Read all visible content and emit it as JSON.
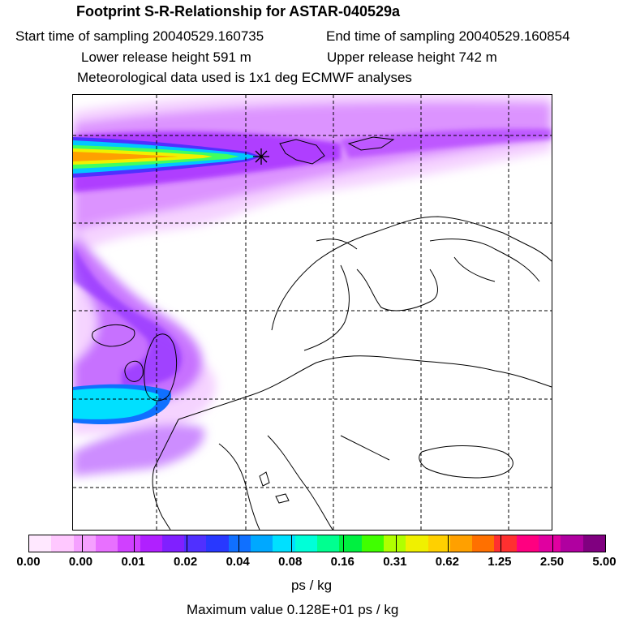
{
  "header": {
    "title": "Footprint S-R-Relationship for ASTAR-040529a",
    "start_time": "Start time of sampling 20040529.160735",
    "end_time": "End time of sampling 20040529.160854",
    "lower_height": "Lower release height  591 m",
    "upper_height": "Upper release height  742 m",
    "met_data": "Meteorological data used is 1x1 deg ECMWF analyses"
  },
  "colorbar": {
    "ticks": [
      "0.00",
      "0.00",
      "0.01",
      "0.02",
      "0.04",
      "0.08",
      "0.16",
      "0.31",
      "0.62",
      "1.25",
      "2.50",
      "5.00"
    ],
    "unit": "ps / kg",
    "max_value_text": "Maximum value  0.128E+01 ps / kg",
    "colors": [
      "#ffe8ff",
      "#ffc8ff",
      "#f5a0ff",
      "#e870ff",
      "#d040ff",
      "#b020ff",
      "#8020ff",
      "#5030ff",
      "#2838ff",
      "#1070ff",
      "#00a8ff",
      "#00e0ff",
      "#00ffd8",
      "#00ff90",
      "#00f040",
      "#40ff00",
      "#b0ff00",
      "#f0f000",
      "#ffd000",
      "#ffa000",
      "#ff7000",
      "#ff3030",
      "#ff0080",
      "#e000a0",
      "#b000a0",
      "#800080"
    ]
  },
  "map": {
    "release_marker": "release-point-star"
  }
}
